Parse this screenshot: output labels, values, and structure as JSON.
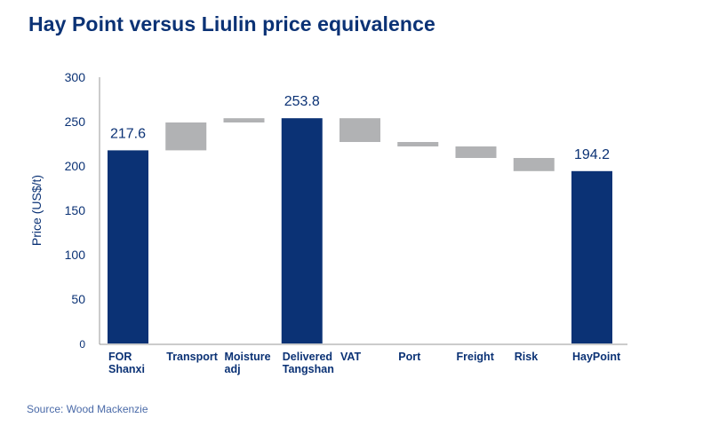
{
  "title": "Hay Point versus Liulin price equivalence",
  "source": "Source: Wood Mackenzie",
  "colors": {
    "total": "#0b3275",
    "step": "#b1b2b4",
    "axis": "#999999",
    "text": "#0b3275"
  },
  "chart_data": {
    "type": "waterfall",
    "title": "Hay Point versus Liulin price equivalence",
    "xlabel": "",
    "ylabel": "Price (US$/t)",
    "ylim": [
      0,
      300
    ],
    "yticks": [
      0,
      50,
      100,
      150,
      200,
      250,
      300
    ],
    "grid": false,
    "categories": [
      "FOR Shanxi",
      "Transport",
      "Moisture adj",
      "Delivered Tangshan",
      "VAT",
      "Port",
      "Freight",
      "Risk",
      "Hay Point"
    ],
    "bars": [
      {
        "label": "FOR Shanxi",
        "lines": [
          "FOR",
          "Shanxi"
        ],
        "kind": "total",
        "start": 0,
        "end": 217.6,
        "value_label": "217.6"
      },
      {
        "label": "Transport",
        "lines": [
          "Transport"
        ],
        "kind": "step",
        "start": 217.6,
        "end": 249.0,
        "value_label": ""
      },
      {
        "label": "Moisture adj",
        "lines": [
          "Moisture",
          "adj"
        ],
        "kind": "step",
        "start": 249.0,
        "end": 253.8,
        "value_label": ""
      },
      {
        "label": "Delivered Tangshan",
        "lines": [
          "Delivered",
          "Tangshan"
        ],
        "kind": "total",
        "start": 0,
        "end": 253.8,
        "value_label": "253.8"
      },
      {
        "label": "VAT",
        "lines": [
          "VAT"
        ],
        "kind": "step",
        "start": 253.8,
        "end": 227.0,
        "value_label": ""
      },
      {
        "label": "Port",
        "lines": [
          "Port"
        ],
        "kind": "step",
        "start": 227.0,
        "end": 222.0,
        "value_label": ""
      },
      {
        "label": "Freight",
        "lines": [
          "Freight"
        ],
        "kind": "step",
        "start": 222.0,
        "end": 209.0,
        "value_label": ""
      },
      {
        "label": "Risk",
        "lines": [
          "Risk"
        ],
        "kind": "step",
        "start": 209.0,
        "end": 194.2,
        "value_label": ""
      },
      {
        "label": "Hay Point",
        "lines": [
          "HayPoint"
        ],
        "kind": "total",
        "start": 0,
        "end": 194.2,
        "value_label": "194.2"
      }
    ]
  }
}
